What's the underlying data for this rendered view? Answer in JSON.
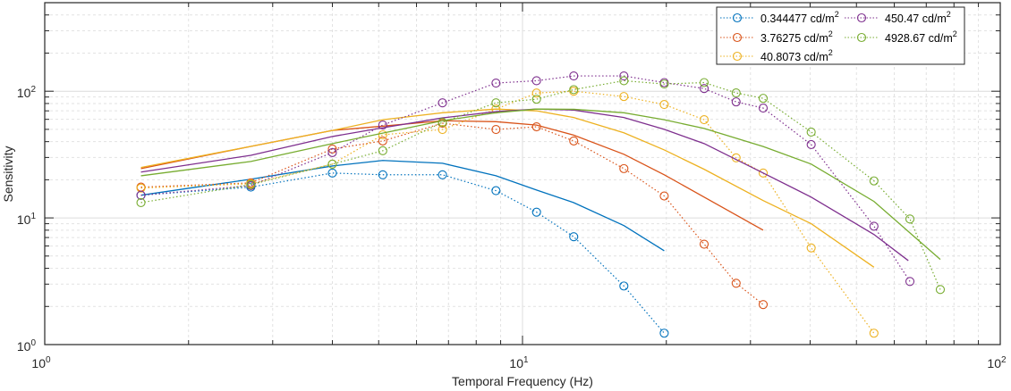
{
  "chart_data": {
    "type": "line",
    "title": "",
    "xlabel": "Temporal Frequency (Hz)",
    "ylabel": "Sensitivity",
    "xscale": "log",
    "yscale": "log",
    "xlim": [
      1,
      100
    ],
    "ylim": [
      1,
      500
    ],
    "grid": true,
    "minor_grid": true,
    "legend_position": "top-right",
    "x_ticks": [
      {
        "base": "10",
        "exp": "0",
        "value": 1
      },
      {
        "base": "10",
        "exp": "1",
        "value": 10
      },
      {
        "base": "10",
        "exp": "2",
        "value": 100
      }
    ],
    "y_ticks": [
      {
        "base": "10",
        "exp": "0",
        "value": 1
      },
      {
        "base": "10",
        "exp": "1",
        "value": 10
      },
      {
        "base": "10",
        "exp": "2",
        "value": 100
      }
    ],
    "series": [
      {
        "name": "0.344477 cd/m",
        "sup": "2",
        "color": "#0072BD",
        "measured": {
          "x": [
            1.59,
            2.7,
            4.0,
            5.1,
            6.8,
            8.8,
            10.7,
            12.8,
            16.3,
            19.8
          ],
          "y": [
            15.1,
            17.5,
            22.6,
            21.9,
            21.9,
            16.4,
            11.1,
            7.1,
            2.9,
            1.23
          ]
        },
        "fit": {
          "x": [
            1.59,
            2.7,
            4.0,
            5.1,
            6.8,
            8.8,
            10.7,
            12.8,
            16.3,
            19.8
          ],
          "y": [
            15.1,
            20.2,
            25.7,
            28.4,
            27.0,
            21.5,
            16.6,
            13.2,
            8.7,
            5.5
          ]
        }
      },
      {
        "name": "3.76275 cd/m",
        "sup": "2",
        "color": "#D95319",
        "measured": {
          "x": [
            1.59,
            2.7,
            4.0,
            5.1,
            6.8,
            8.8,
            10.7,
            12.8,
            16.3,
            19.8,
            24.0,
            28.0,
            31.9
          ],
          "y": [
            17.5,
            18.9,
            35,
            40.5,
            55.9,
            49.9,
            52.4,
            40.5,
            24.5,
            14.9,
            6.2,
            3.05,
            2.07
          ]
        },
        "fit": {
          "x": [
            1.59,
            2.7,
            4.0,
            5.1,
            6.8,
            8.8,
            10.7,
            12.8,
            16.3,
            19.8,
            24.0,
            31.9
          ],
          "y": [
            24.5,
            36.7,
            49,
            53,
            58.5,
            57.5,
            54,
            45,
            31.8,
            21.9,
            14.6,
            8.0
          ]
        }
      },
      {
        "name": "40.8073 cd/m",
        "sup": "2",
        "color": "#EDB120",
        "measured": {
          "x": [
            1.59,
            2.7,
            4.0,
            5.1,
            6.8,
            8.8,
            10.7,
            12.8,
            16.3,
            19.8,
            24.0,
            28.0,
            31.9,
            40.2,
            54.4
          ],
          "y": [
            17.2,
            18.6,
            26.6,
            45.3,
            49.9,
            72.3,
            96.8,
            100,
            90.8,
            78.5,
            59.6,
            29.8,
            22.6,
            5.8,
            1.23
          ]
        },
        "fit": {
          "x": [
            1.59,
            2.7,
            4.0,
            5.1,
            6.8,
            8.8,
            10.7,
            12.8,
            16.3,
            19.8,
            24.0,
            31.9,
            40.2,
            54.4
          ],
          "y": [
            25,
            36.7,
            49,
            59.6,
            67.6,
            72.3,
            70,
            62,
            47,
            34.4,
            24.2,
            13.7,
            9.0,
            4.08
          ]
        }
      },
      {
        "name": "450.47 cd/m",
        "sup": "2",
        "color": "#7E2F8E",
        "measured": {
          "x": [
            1.59,
            2.7,
            4.0,
            5.1,
            6.8,
            8.8,
            10.7,
            12.8,
            16.3,
            19.8,
            24.0,
            28.0,
            31.9,
            40.2,
            54.4,
            64.7
          ],
          "y": [
            15.1,
            18,
            32.8,
            54.1,
            81,
            116,
            121,
            132,
            132,
            117,
            105,
            82.4,
            73.6,
            37.9,
            8.6,
            3.15
          ]
        },
        "fit": {
          "x": [
            1.59,
            2.7,
            4.0,
            5.1,
            6.8,
            8.8,
            10.7,
            12.8,
            16.3,
            19.8,
            24.0,
            31.9,
            40.2,
            54.4,
            64.2
          ],
          "y": [
            23,
            31.2,
            43.9,
            51.5,
            61.6,
            69,
            72.3,
            71,
            62,
            50,
            38.6,
            22.6,
            14.6,
            7.4,
            4.6
          ]
        }
      },
      {
        "name": "4928.67 cd/m",
        "sup": "2",
        "color": "#77AC30",
        "measured": {
          "x": [
            1.59,
            2.7,
            4.0,
            5.1,
            6.8,
            8.8,
            10.7,
            12.8,
            16.3,
            19.8,
            24.0,
            28.0,
            31.9,
            40.2,
            54.4,
            64.7,
            74.9
          ],
          "y": [
            13.2,
            18.3,
            26.6,
            33.9,
            56.8,
            81,
            86.5,
            103,
            121,
            114,
            117,
            97,
            87.9,
            47.6,
            19.6,
            9.8,
            2.72
          ]
        },
        "fit": {
          "x": [
            1.59,
            2.7,
            4.0,
            5.1,
            6.8,
            8.8,
            10.7,
            12.8,
            16.3,
            19.8,
            24.0,
            31.9,
            40.2,
            54.4,
            74.9
          ],
          "y": [
            21.5,
            27.9,
            38.6,
            46.7,
            58.5,
            67.6,
            72.3,
            72,
            67.6,
            59.6,
            50.8,
            36.6,
            26.6,
            13.5,
            4.7
          ]
        }
      }
    ]
  }
}
